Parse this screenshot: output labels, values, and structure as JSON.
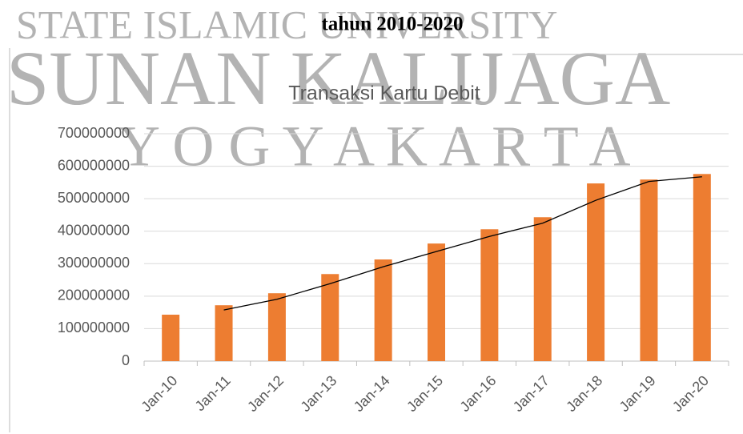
{
  "heading": "tahun 2010-2020",
  "watermark": [
    "STATE ISLAMIC UNIVERSITY",
    "SUNAN KALIJAGA",
    "Y O G Y A K A R T A"
  ],
  "chart_data": {
    "type": "bar",
    "title": "Transaksi Kartu Debit",
    "categories": [
      "Jan-10",
      "Jan-11",
      "Jan-12",
      "Jan-13",
      "Jan-14",
      "Jan-15",
      "Jan-16",
      "Jan-17",
      "Jan-18",
      "Jan-19",
      "Jan-20"
    ],
    "values": [
      143000000,
      172000000,
      209000000,
      268000000,
      313000000,
      362000000,
      406000000,
      443000000,
      547000000,
      559000000,
      576000000
    ],
    "color": "#ed7d31",
    "ylim": [
      0,
      700000000
    ],
    "yticks": [
      0,
      100000000,
      200000000,
      300000000,
      400000000,
      500000000,
      600000000,
      700000000
    ],
    "grid": true,
    "trendline": {
      "type": "moving_average",
      "period": 2,
      "color": "#000000"
    }
  }
}
